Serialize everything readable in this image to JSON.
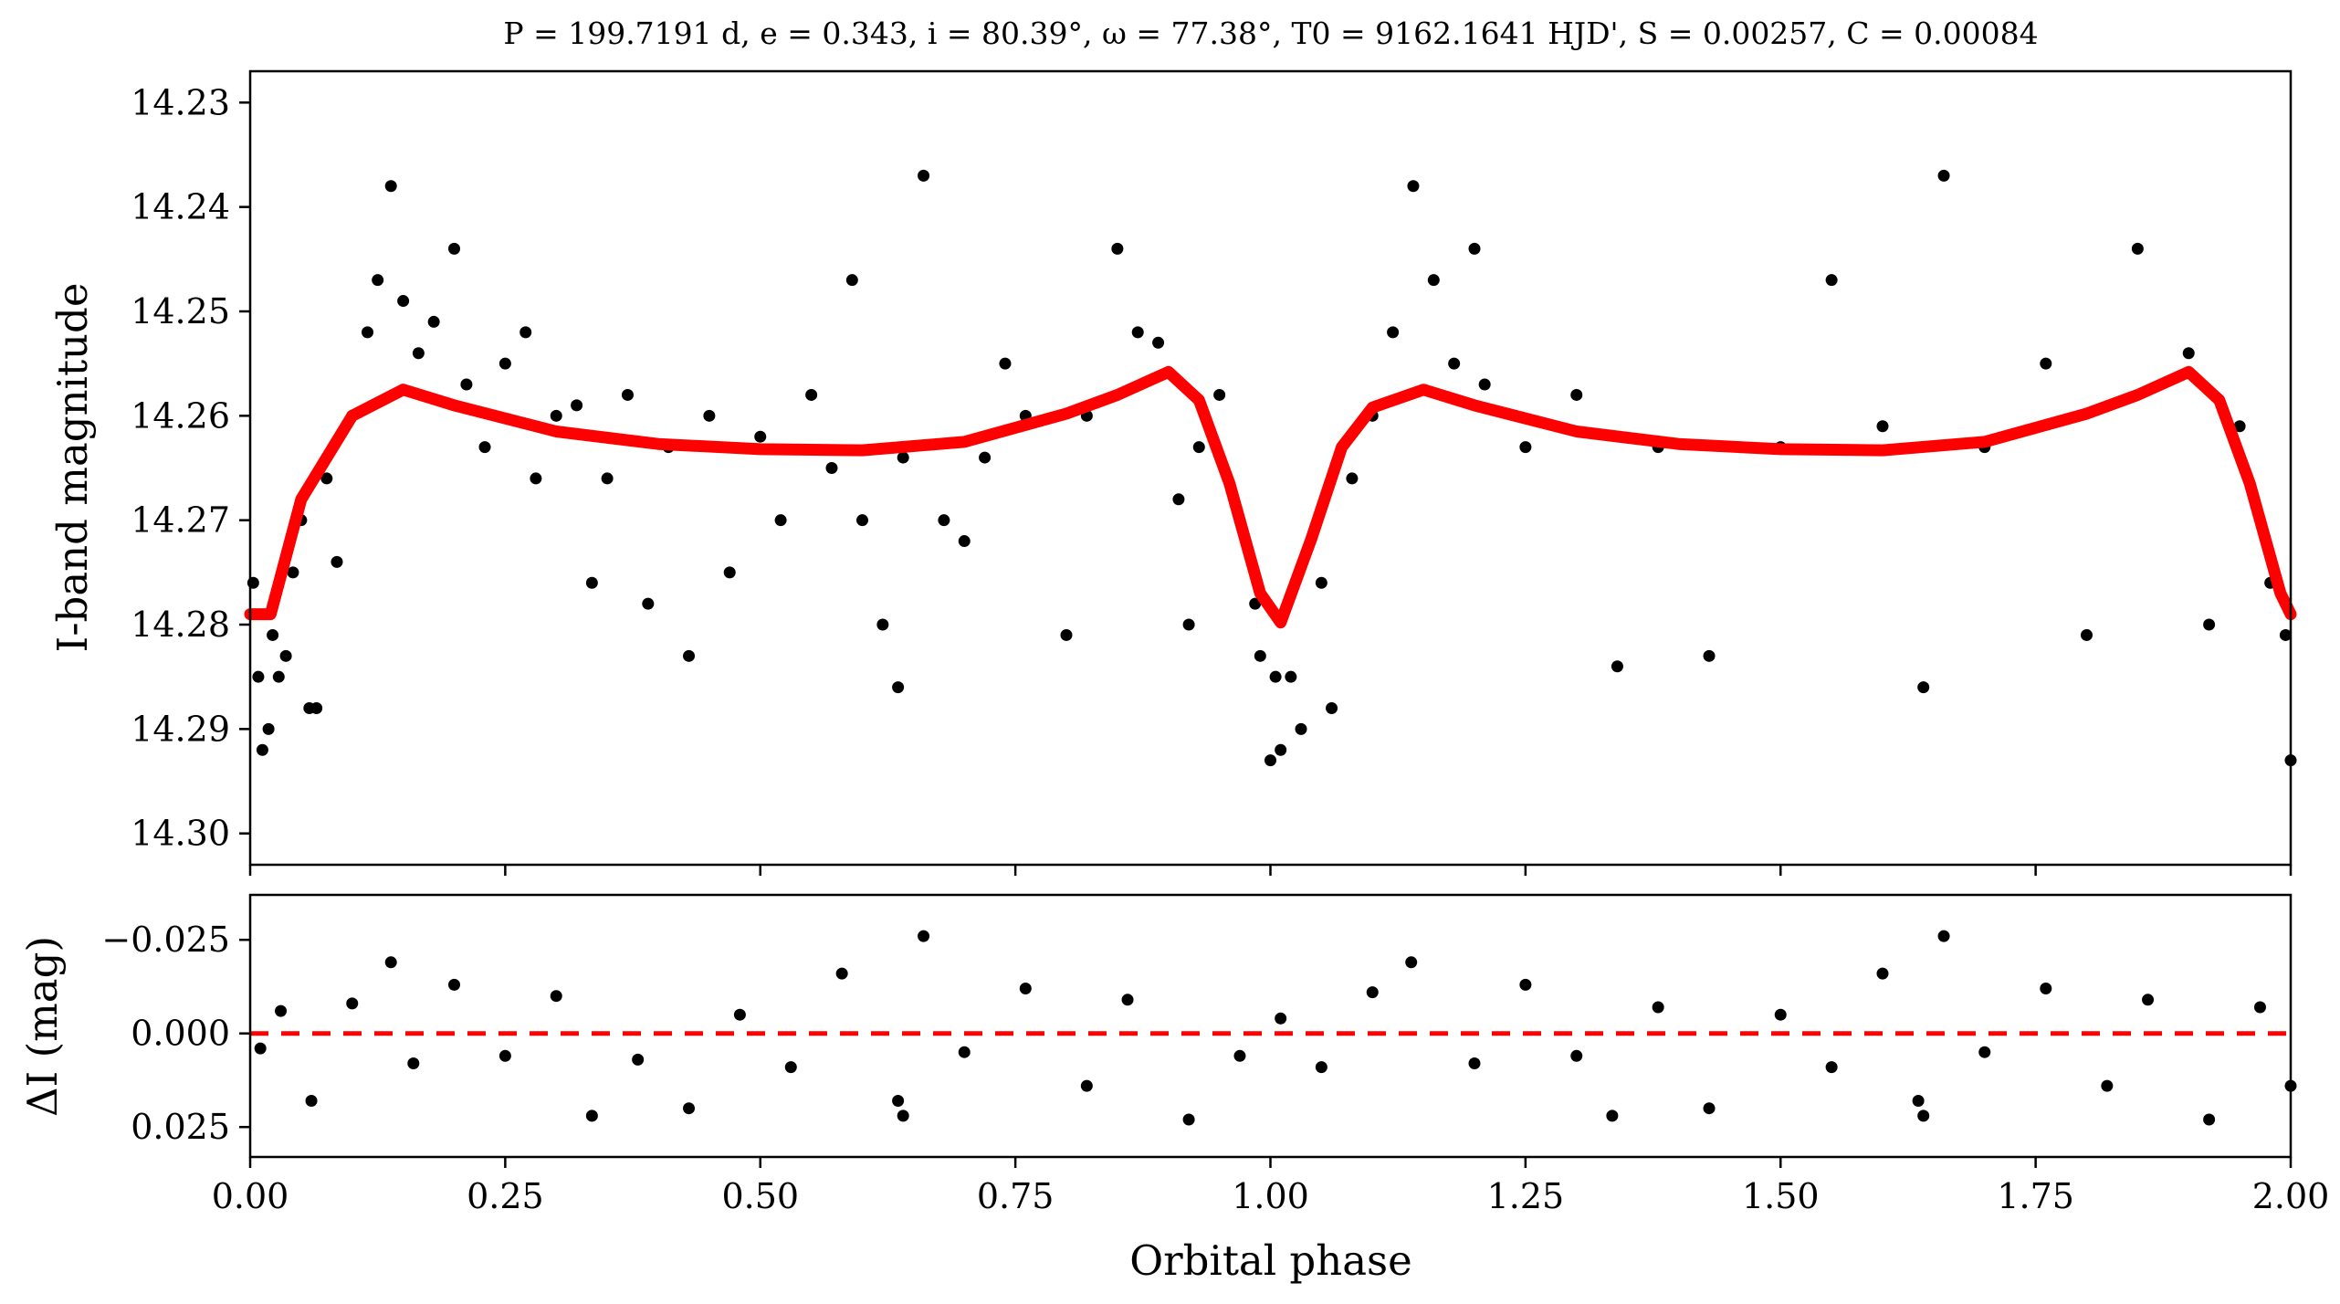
{
  "chart_data": [
    {
      "type": "scatter",
      "title": "P = 199.7191 d, e = 0.343, i = 80.39°, ω = 77.38°, T0 = 9162.1641 HJD', S = 0.00257, C = 0.00084",
      "xlabel": "",
      "ylabel": "I-band magnitude",
      "xlim": [
        0.0,
        2.0
      ],
      "ylim": [
        14.303,
        14.227
      ],
      "y_inverted": true,
      "yticks": [
        "14.23",
        "14.24",
        "14.25",
        "14.26",
        "14.27",
        "14.28",
        "14.29",
        "14.30"
      ],
      "grid": false,
      "series": [
        {
          "kind": "points",
          "color": "#000000",
          "x": [
            0.003,
            0.008,
            0.012,
            0.018,
            0.022,
            0.028,
            0.035,
            0.042,
            0.05,
            0.058,
            0.065,
            0.075,
            0.085,
            0.1,
            0.115,
            0.125,
            0.138,
            0.15,
            0.165,
            0.18,
            0.2,
            0.212,
            0.23,
            0.25,
            0.27,
            0.28,
            0.3,
            0.32,
            0.335,
            0.35,
            0.37,
            0.39,
            0.41,
            0.43,
            0.45,
            0.47,
            0.5,
            0.52,
            0.55,
            0.57,
            0.59,
            0.6,
            0.62,
            0.635,
            0.64,
            0.66,
            0.68,
            0.7,
            0.72,
            0.74,
            0.76,
            0.8,
            0.82,
            0.85,
            0.87,
            0.89,
            0.91,
            0.92,
            0.93,
            0.95,
            0.97,
            0.985,
            0.99,
            1.0,
            1.005,
            1.01,
            1.02,
            1.03,
            1.05,
            1.06,
            1.08,
            1.1,
            1.12,
            1.14,
            1.16,
            1.18,
            1.2,
            1.21,
            1.25,
            1.3,
            1.34,
            1.38,
            1.43,
            1.5,
            1.55,
            1.6,
            1.64,
            1.66,
            1.7,
            1.76,
            1.8,
            1.85,
            1.9,
            1.92,
            1.95,
            1.98,
            1.995,
            2.0
          ],
          "y": [
            14.276,
            14.285,
            14.292,
            14.29,
            14.281,
            14.285,
            14.283,
            14.275,
            14.27,
            14.288,
            14.288,
            14.266,
            14.274,
            14.26,
            14.252,
            14.247,
            14.238,
            14.249,
            14.254,
            14.251,
            14.244,
            14.257,
            14.263,
            14.255,
            14.252,
            14.266,
            14.26,
            14.259,
            14.276,
            14.266,
            14.258,
            14.278,
            14.263,
            14.283,
            14.26,
            14.275,
            14.262,
            14.27,
            14.258,
            14.265,
            14.247,
            14.27,
            14.28,
            14.286,
            14.264,
            14.237,
            14.27,
            14.272,
            14.264,
            14.255,
            14.26,
            14.281,
            14.26,
            14.244,
            14.252,
            14.253,
            14.268,
            14.28,
            14.263,
            14.258,
            14.27,
            14.278,
            14.283,
            14.293,
            14.285,
            14.292,
            14.285,
            14.29,
            14.276,
            14.288,
            14.266,
            14.26,
            14.252,
            14.238,
            14.247,
            14.255,
            14.244,
            14.257,
            14.263,
            14.258,
            14.284,
            14.263,
            14.283,
            14.263,
            14.247,
            14.261,
            14.286,
            14.237,
            14.263,
            14.255,
            14.281,
            14.244,
            14.254,
            14.28,
            14.261,
            14.276,
            14.281,
            14.293
          ]
        },
        {
          "kind": "model",
          "color": "#ff0000",
          "x": [
            0.0,
            0.02,
            0.05,
            0.1,
            0.15,
            0.2,
            0.3,
            0.4,
            0.5,
            0.6,
            0.7,
            0.8,
            0.85,
            0.9,
            0.93,
            0.96,
            0.99,
            1.01,
            1.04,
            1.07,
            1.1,
            1.15,
            1.2,
            1.3,
            1.4,
            1.5,
            1.6,
            1.7,
            1.8,
            1.85,
            1.9,
            1.93,
            1.96,
            1.99,
            2.0
          ],
          "y": [
            14.279,
            14.279,
            14.268,
            14.26,
            14.2575,
            14.259,
            14.2615,
            14.2627,
            14.2632,
            14.2633,
            14.2625,
            14.2598,
            14.258,
            14.2558,
            14.2585,
            14.2665,
            14.277,
            14.2798,
            14.2718,
            14.263,
            14.2592,
            14.2575,
            14.259,
            14.2615,
            14.2627,
            14.2632,
            14.2633,
            14.2625,
            14.2598,
            14.258,
            14.2558,
            14.2585,
            14.2665,
            14.277,
            14.279
          ]
        }
      ]
    },
    {
      "type": "scatter",
      "title": "",
      "xlabel": "Orbital phase",
      "ylabel": "ΔI (mag)",
      "xlim": [
        0.0,
        2.0
      ],
      "ylim": [
        0.033,
        -0.037
      ],
      "y_inverted": true,
      "yticks": [
        "−0.025",
        "0.000",
        "0.025"
      ],
      "ytick_values": [
        -0.025,
        0.0,
        0.025
      ],
      "xticks": [
        "0.00",
        "0.25",
        "0.50",
        "0.75",
        "1.00",
        "1.25",
        "1.50",
        "1.75",
        "2.00"
      ],
      "xtick_values": [
        0.0,
        0.25,
        0.5,
        0.75,
        1.0,
        1.25,
        1.5,
        1.75,
        2.0
      ],
      "grid": false,
      "series": [
        {
          "kind": "points",
          "color": "#000000",
          "x": [
            0.01,
            0.03,
            0.06,
            0.1,
            0.138,
            0.16,
            0.2,
            0.25,
            0.3,
            0.335,
            0.38,
            0.43,
            0.48,
            0.53,
            0.58,
            0.635,
            0.64,
            0.66,
            0.7,
            0.76,
            0.82,
            0.86,
            0.92,
            0.97,
            1.01,
            1.05,
            1.1,
            1.138,
            1.2,
            1.25,
            1.3,
            1.335,
            1.38,
            1.43,
            1.5,
            1.55,
            1.6,
            1.635,
            1.64,
            1.66,
            1.7,
            1.76,
            1.82,
            1.86,
            1.92,
            1.97,
            2.0
          ],
          "y": [
            0.004,
            -0.006,
            0.018,
            -0.008,
            -0.019,
            0.008,
            -0.013,
            0.006,
            -0.01,
            0.022,
            0.007,
            0.02,
            -0.005,
            0.009,
            -0.016,
            0.018,
            0.022,
            -0.026,
            0.005,
            -0.012,
            0.014,
            -0.009,
            0.023,
            0.006,
            -0.004,
            0.009,
            -0.011,
            -0.019,
            0.008,
            -0.013,
            0.006,
            0.022,
            -0.007,
            0.02,
            -0.005,
            0.009,
            -0.016,
            0.018,
            0.022,
            -0.026,
            0.005,
            -0.012,
            0.014,
            -0.009,
            0.023,
            -0.007,
            0.014
          ]
        },
        {
          "kind": "zero-line",
          "color": "#ff0000",
          "y": 0.0
        }
      ]
    }
  ]
}
